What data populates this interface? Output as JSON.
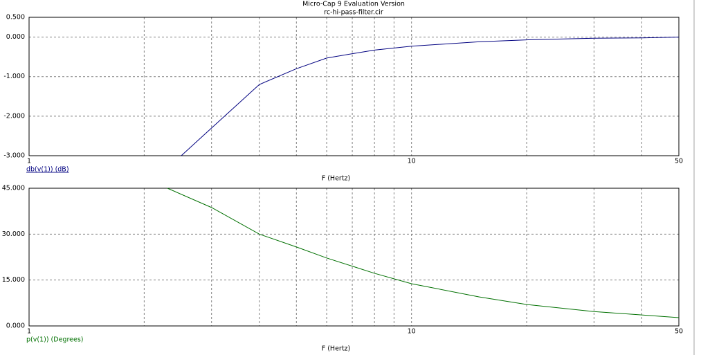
{
  "chart_data": [
    {
      "type": "line",
      "title": "Micro-Cap 9 Evaluation Version",
      "subtitle": "rc-hi-pass-filter.cir",
      "xlabel": "F (Hertz)",
      "xscale": "log",
      "xlim": [
        1,
        50
      ],
      "xticks": [
        1,
        10,
        50
      ],
      "xgrid_minor": [
        2,
        3,
        4,
        5,
        6,
        7,
        8,
        9,
        20,
        30,
        40
      ],
      "ylim": [
        -3,
        0.5
      ],
      "yticks": [
        {
          "value": 0.5,
          "label": "0.500"
        },
        {
          "value": 0,
          "label": "0.000"
        },
        {
          "value": -1,
          "label": "-1.000"
        },
        {
          "value": -2,
          "label": "-2.000"
        },
        {
          "value": -3,
          "label": "-3.000"
        }
      ],
      "grid": true,
      "x": [
        2.5,
        3,
        4,
        5,
        6,
        7,
        8,
        10,
        15,
        20,
        30,
        40,
        50
      ],
      "series": [
        {
          "name": "db(v(1)) (dB)",
          "color": "#000080",
          "values": [
            -3.0,
            -2.3,
            -1.2,
            -0.8,
            -0.53,
            -0.42,
            -0.33,
            -0.23,
            -0.12,
            -0.07,
            -0.03,
            -0.02,
            0
          ]
        }
      ]
    },
    {
      "type": "line",
      "xlabel": "F (Hertz)",
      "xscale": "log",
      "xlim": [
        1,
        50
      ],
      "xticks": [
        1,
        10,
        50
      ],
      "xgrid_minor": [
        2,
        3,
        4,
        5,
        6,
        7,
        8,
        9,
        20,
        30,
        40
      ],
      "ylim": [
        0,
        45
      ],
      "yticks": [
        {
          "value": 0,
          "label": "0.000"
        },
        {
          "value": 15,
          "label": "15.000"
        },
        {
          "value": 30,
          "label": "30.000"
        },
        {
          "value": 45,
          "label": "45.000"
        }
      ],
      "grid": true,
      "x": [
        2.3,
        3,
        4,
        5,
        6,
        8,
        10,
        15,
        20,
        30,
        50
      ],
      "series": [
        {
          "name": "p(v(1)) (Degrees)",
          "color": "#007000",
          "values": [
            45,
            38.7,
            30,
            25.8,
            22.2,
            17.2,
            13.8,
            9.5,
            7.0,
            4.7,
            2.7
          ]
        }
      ]
    }
  ]
}
